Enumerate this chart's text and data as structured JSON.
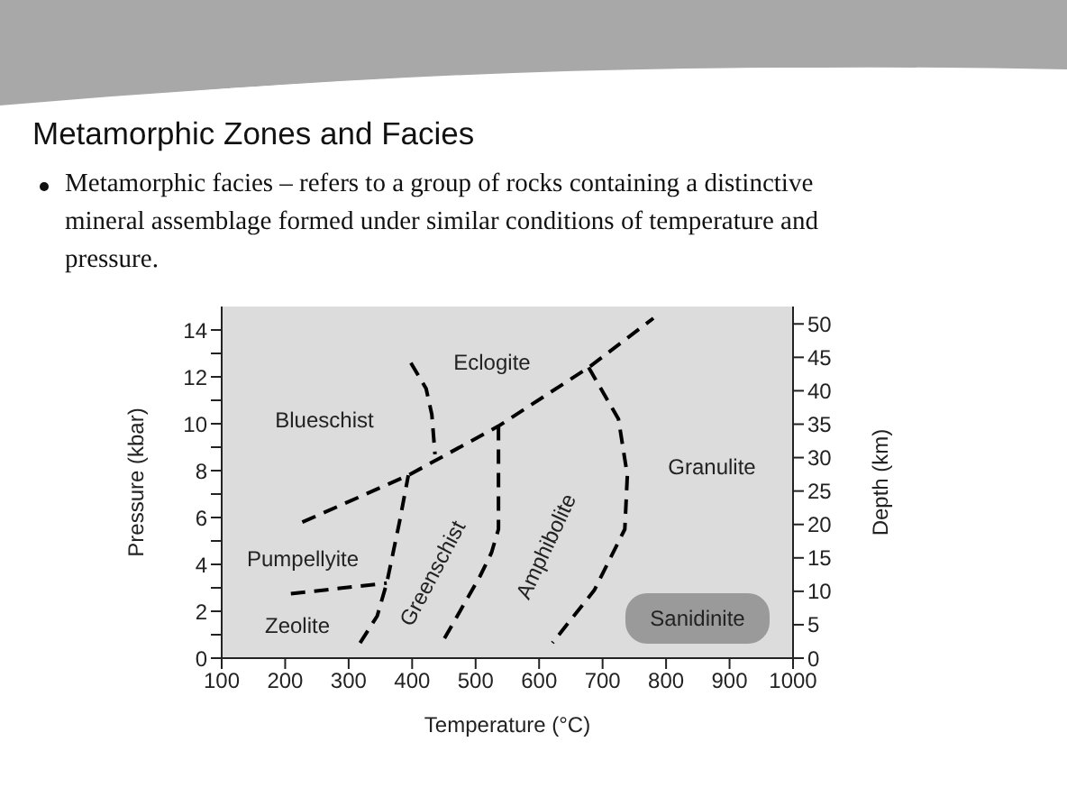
{
  "chart_data": {
    "type": "line",
    "title": "Metamorphic Zones and Facies",
    "subtitle": "Metamorphic facies – refers to a group of rocks containing a distinctive mineral assemblage formed under similar conditions of temperature and pressure.",
    "xlabel": "Temperature (°C)",
    "ylabel": "Pressure (kbar)",
    "y2label": "Depth (km)",
    "xlim": [
      100,
      1000
    ],
    "xticks": [
      100,
      200,
      300,
      400,
      500,
      600,
      700,
      800,
      900,
      1000
    ],
    "ylim": [
      0,
      15
    ],
    "yticks": [
      0,
      {
        "value": 1,
        "label": null
      },
      2,
      {
        "value": 3,
        "label": null
      },
      4,
      {
        "value": 5,
        "label": null
      },
      6,
      {
        "value": 7,
        "label": null
      },
      8,
      {
        "value": 9,
        "label": null
      },
      10,
      {
        "value": 11,
        "label": null
      },
      12,
      {
        "value": 13,
        "label": null
      },
      14
    ],
    "y2lim": [
      0,
      52.6
    ],
    "y2ticks": [
      0,
      5,
      10,
      15,
      20,
      25,
      30,
      35,
      40,
      45,
      50
    ],
    "line_style": "dashed",
    "marker": "none",
    "series": [
      {
        "color": "#000000",
        "x": [
          227,
          394,
          536,
          678,
          780
        ],
        "values": [
          5.8,
          7.8,
          9.9,
          12.4,
          14.5
        ]
      },
      {
        "color": "#000000",
        "x": [
          209,
          360
        ],
        "values": [
          2.75,
          3.2
        ]
      },
      {
        "color": "#000000",
        "x": [
          318,
          345,
          360,
          380,
          394
        ],
        "values": [
          0.65,
          1.8,
          3.2,
          5.8,
          7.8
        ]
      },
      {
        "color": "#000000",
        "x": [
          398,
          422,
          431,
          436
        ],
        "values": [
          12.6,
          11.5,
          10.4,
          8.7
        ]
      },
      {
        "color": "#000000",
        "x": [
          536,
          536,
          525,
          507,
          450
        ],
        "values": [
          9.9,
          5.5,
          4.5,
          3.5,
          0.8
        ]
      },
      {
        "color": "#000000",
        "x": [
          678,
          725,
          739,
          735,
          687,
          621
        ],
        "values": [
          12.4,
          10.2,
          7.8,
          5.5,
          2.9,
          0.65
        ]
      }
    ],
    "annotations": [
      "Eclogite",
      "Blueschist",
      "Pumpellyite",
      "Zeolite",
      "Greenschist",
      "Amphibolite",
      "Granulite",
      "Sanidinite"
    ]
  }
}
